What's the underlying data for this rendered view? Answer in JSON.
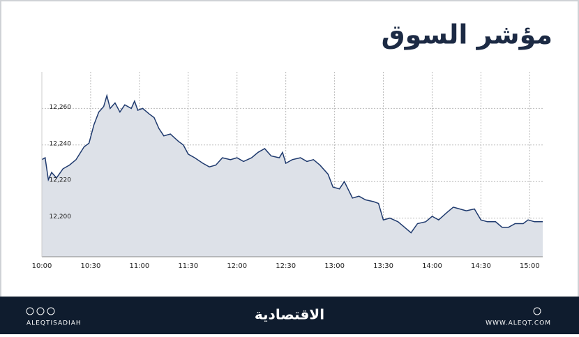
{
  "chart_data": {
    "type": "area",
    "title": "مؤشر السوق",
    "x": [
      "10:00",
      "10:02",
      "10:04",
      "10:06",
      "10:09",
      "10:13",
      "10:17",
      "10:21",
      "10:26",
      "10:29",
      "10:32",
      "10:35",
      "10:38",
      "10:40",
      "10:42",
      "10:45",
      "10:48",
      "10:51",
      "10:55",
      "10:57",
      "10:59",
      "11:02",
      "11:06",
      "11:09",
      "11:12",
      "11:15",
      "11:19",
      "11:24",
      "11:27",
      "11:30",
      "11:34",
      "11:39",
      "11:43",
      "11:47",
      "11:51",
      "11:56",
      "12:00",
      "12:04",
      "12:09",
      "12:13",
      "12:17",
      "12:21",
      "12:26",
      "12:28",
      "12:30",
      "12:34",
      "12:39",
      "12:43",
      "12:47",
      "12:51",
      "12:56",
      "12:59",
      "13:03",
      "13:06",
      "13:11",
      "13:15",
      "13:19",
      "13:24",
      "13:27",
      "13:30",
      "13:34",
      "13:39",
      "13:43",
      "13:47",
      "13:51",
      "13:56",
      "14:00",
      "14:04",
      "14:09",
      "14:13",
      "14:17",
      "14:21",
      "14:26",
      "14:30",
      "14:34",
      "14:39",
      "14:43",
      "14:47",
      "14:51",
      "14:56",
      "14:59",
      "15:03",
      "15:08"
    ],
    "values": [
      12232,
      12233,
      12221,
      12225,
      12222,
      12227,
      12229,
      12232,
      12239,
      12241,
      12251,
      12258,
      12261,
      12267,
      12260,
      12263,
      12258,
      12262,
      12260,
      12264,
      12259,
      12260,
      12257,
      12255,
      12249,
      12245,
      12246,
      12242,
      12240,
      12235,
      12233,
      12230,
      12228,
      12229,
      12233,
      12232,
      12233,
      12231,
      12233,
      12236,
      12238,
      12234,
      12233,
      12236,
      12230,
      12232,
      12233,
      12231,
      12232,
      12229,
      12224,
      12217,
      12216,
      12220,
      12211,
      12212,
      12210,
      12209,
      12208,
      12199,
      12200,
      12198,
      12195,
      12192,
      12197,
      12198,
      12201,
      12199,
      12203,
      12206,
      12205,
      12204,
      12205,
      12199,
      12198,
      12198,
      12195,
      12195,
      12197,
      12197,
      12199,
      12198,
      12198
    ],
    "color": "#1f3a6e",
    "fill": "#dde1e8",
    "xlim": [
      "10:00",
      "15:08"
    ],
    "xticks": [
      "10:00",
      "10:30",
      "11:00",
      "11:30",
      "12:00",
      "12:30",
      "13:00",
      "13:30",
      "14:00",
      "14:30",
      "15:00"
    ],
    "ylim": [
      12180,
      12280
    ],
    "yticks": [
      {
        "value": 12200,
        "label": "12,200"
      },
      {
        "value": 12220,
        "label": "12,220"
      },
      {
        "value": 12240,
        "label": "12,240"
      },
      {
        "value": 12260,
        "label": "12,260"
      }
    ],
    "grid": true
  },
  "footer": {
    "brand": "الاقتصادية",
    "handle": "ALEQTISADIAH",
    "website": "WWW.ALEQT.COM"
  }
}
